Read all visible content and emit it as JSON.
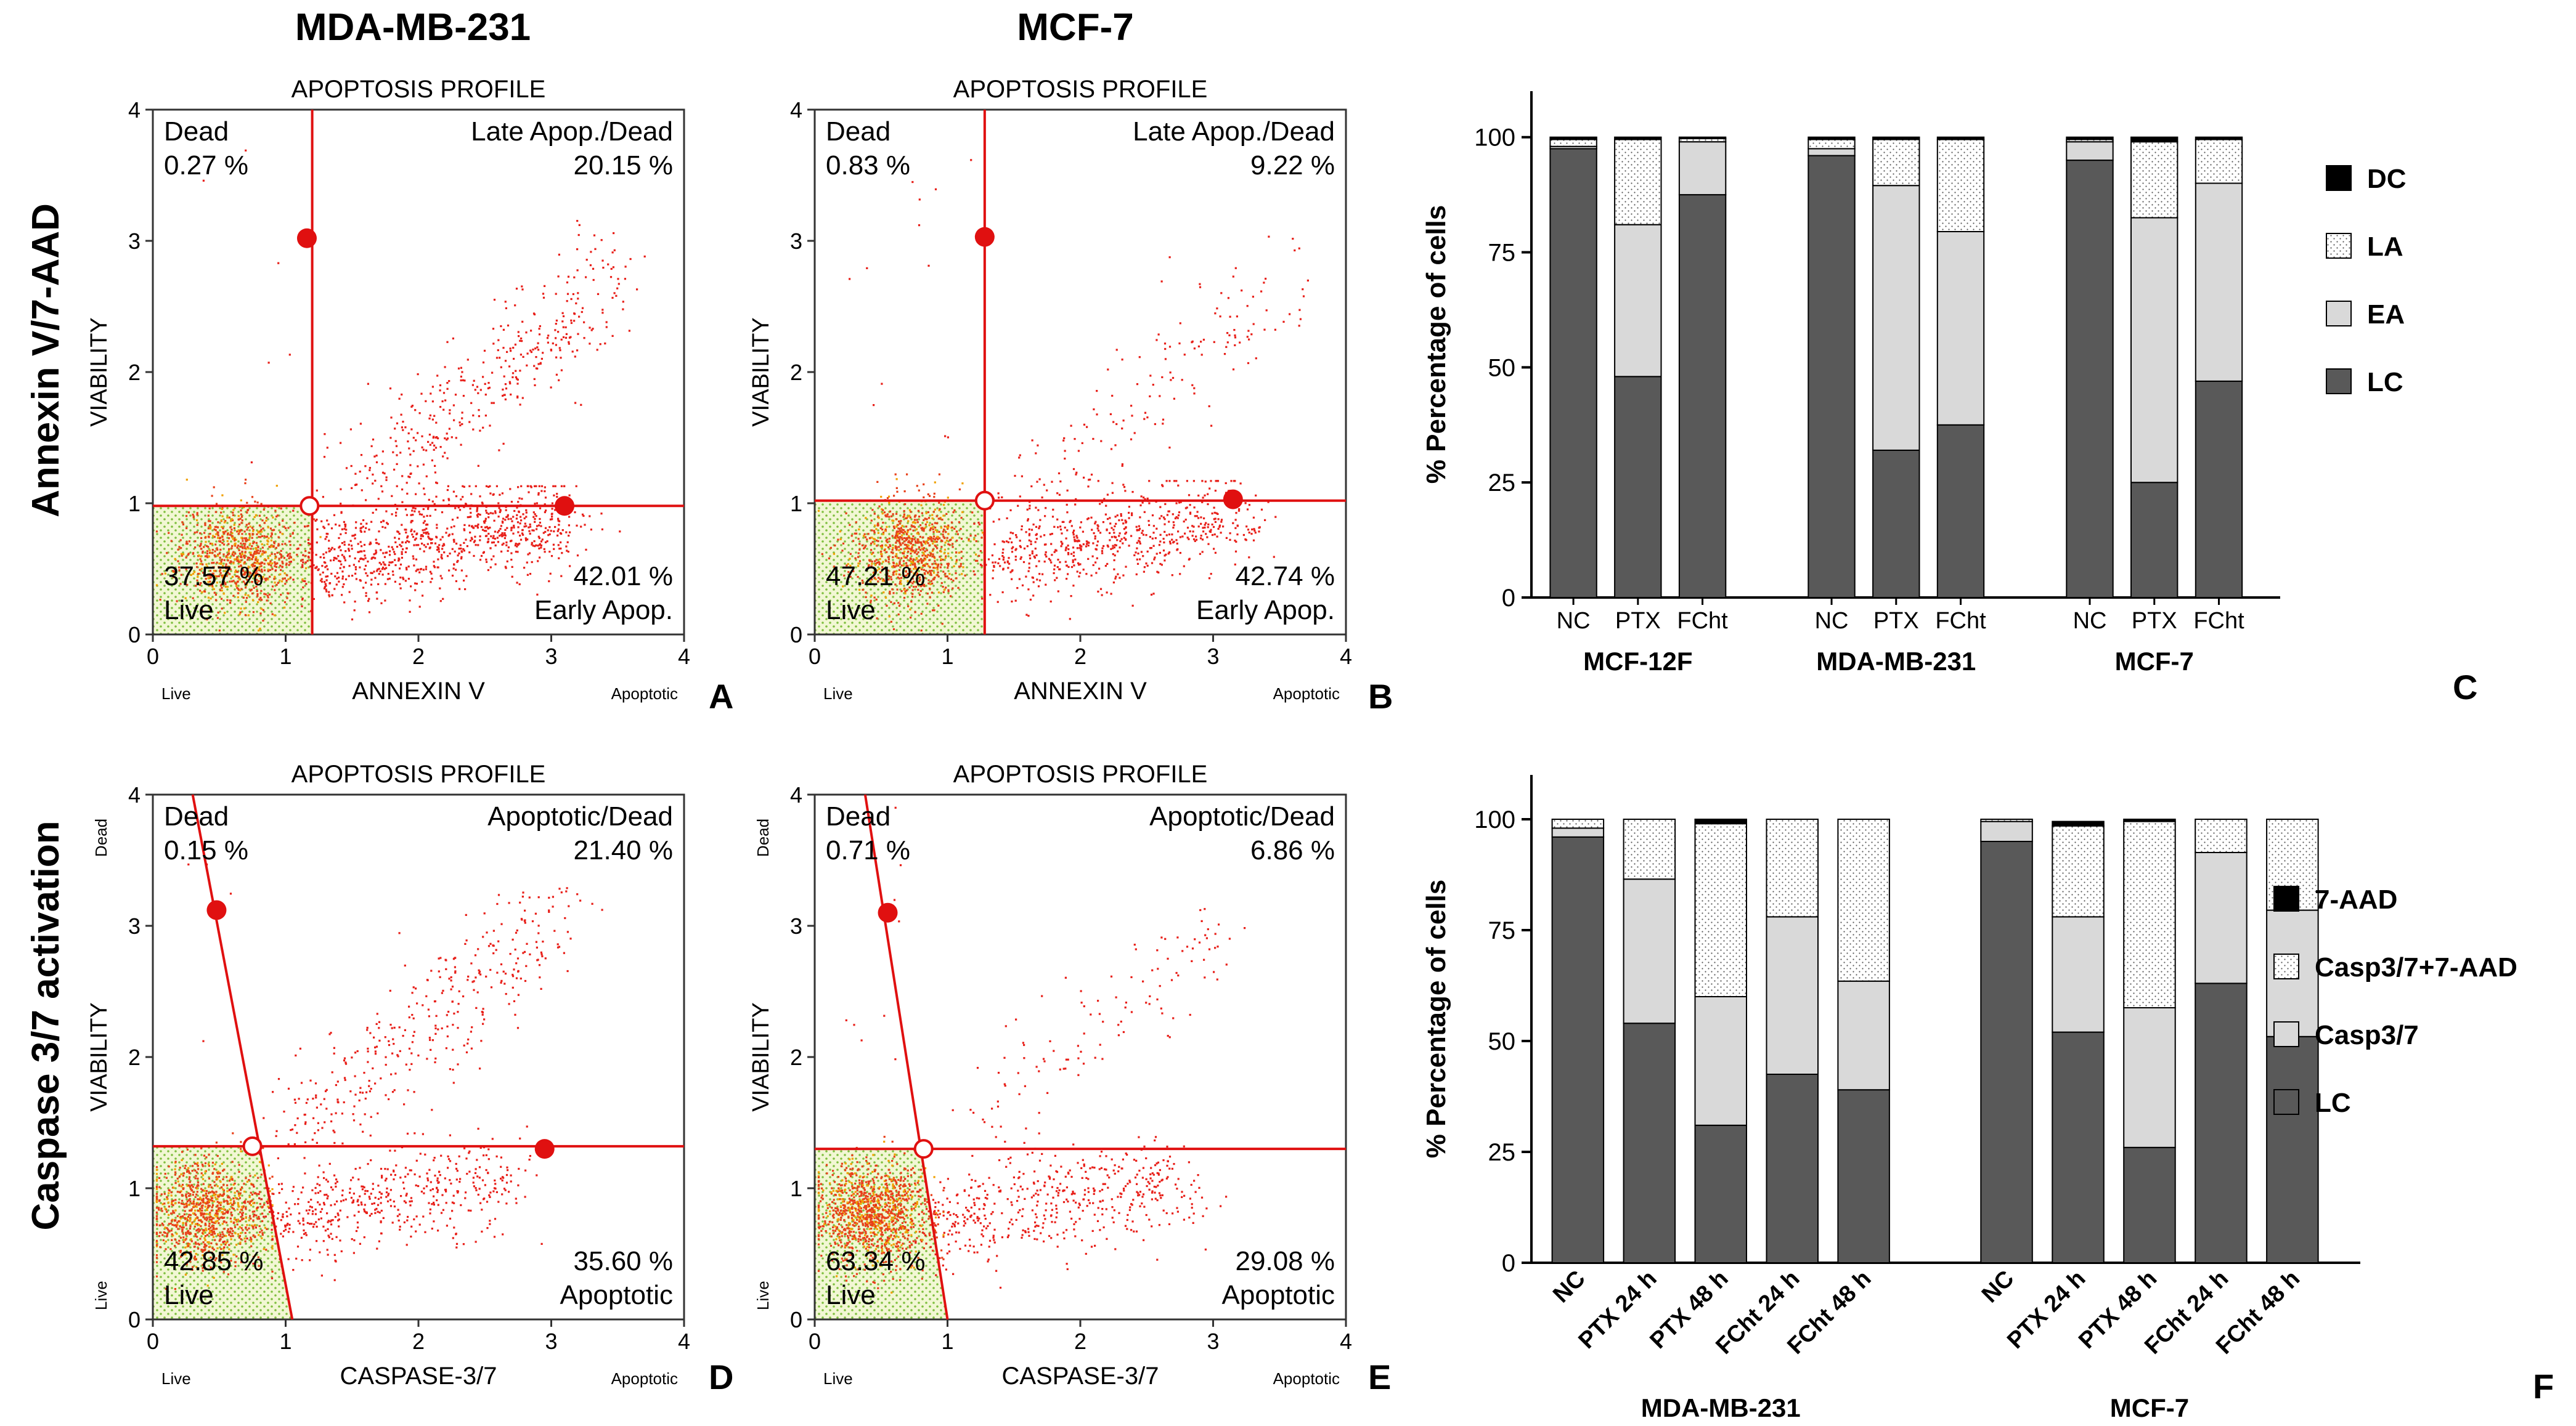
{
  "figure": {
    "col_titles": [
      "MDA-MB-231",
      "MCF-7"
    ],
    "row_titles": [
      "Annexin V/7-AAD",
      "Caspase 3/7 activation"
    ]
  },
  "chart_data": [
    {
      "type": "scatter",
      "panel": "A",
      "title": "APOPTOSIS PROFILE",
      "xlabel": "ANNEXIN V",
      "ylabel": "VIABILITY",
      "x_left_label": "Live",
      "x_right_label": "Apoptotic",
      "y_top_label": "",
      "y_bottom_label": "",
      "xlim": [
        0,
        4
      ],
      "ylim": [
        0,
        4
      ],
      "xticks": [
        "0",
        "1",
        "2",
        "3",
        "4"
      ],
      "yticks": [
        "0",
        "1",
        "2",
        "3",
        "4"
      ],
      "quadrants": {
        "tl_name": "Dead",
        "tl_pct": "0.27 %",
        "tr_name": "Late Apop./Dead",
        "tr_pct": "20.15 %",
        "bl_name": "Live",
        "bl_pct": "37.57 %",
        "br_name": "Early Apop.",
        "br_pct": "42.01 %"
      },
      "gate": {
        "center": [
          1.18,
          0.98
        ],
        "top_handle": [
          1.16,
          3.02
        ],
        "right_handle": [
          3.1,
          0.98
        ],
        "line_top": [
          1.2,
          4
        ],
        "line_bottom": [
          1.2,
          0
        ]
      },
      "points": {
        "live": 800,
        "early": 900,
        "late": 420,
        "dead": 6
      }
    },
    {
      "type": "scatter",
      "panel": "B",
      "title": "APOPTOSIS PROFILE",
      "xlabel": "ANNEXIN V",
      "ylabel": "VIABILITY",
      "x_left_label": "Live",
      "x_right_label": "Apoptotic",
      "y_top_label": "",
      "y_bottom_label": "",
      "xlim": [
        0,
        4
      ],
      "ylim": [
        0,
        4
      ],
      "xticks": [
        "0",
        "1",
        "2",
        "3",
        "4"
      ],
      "yticks": [
        "0",
        "1",
        "2",
        "3",
        "4"
      ],
      "quadrants": {
        "tl_name": "Dead",
        "tl_pct": "0.83 %",
        "tr_name": "Late Apop./Dead",
        "tr_pct": "9.22 %",
        "bl_name": "Live",
        "bl_pct": "47.21 %",
        "br_name": "Early Apop.",
        "br_pct": "42.74 %"
      },
      "gate": {
        "center": [
          1.28,
          1.02
        ],
        "top_handle": [
          1.28,
          3.03
        ],
        "right_handle": [
          3.15,
          1.03
        ],
        "line_top": [
          1.28,
          4
        ],
        "line_bottom": [
          1.28,
          0
        ]
      },
      "points": {
        "live": 800,
        "early": 650,
        "late": 160,
        "dead": 12
      }
    },
    {
      "type": "scatter",
      "panel": "D",
      "title": "APOPTOSIS PROFILE",
      "xlabel": "CASPASE-3/7",
      "ylabel": "VIABILITY",
      "x_left_label": "Live",
      "x_right_label": "Apoptotic",
      "y_top_label": "Dead",
      "y_bottom_label": "Live",
      "xlim": [
        0,
        4
      ],
      "ylim": [
        0,
        4
      ],
      "xticks": [
        "0",
        "1",
        "2",
        "3",
        "4"
      ],
      "yticks": [
        "0",
        "1",
        "2",
        "3",
        "4"
      ],
      "quadrants": {
        "tl_name": "Dead",
        "tl_pct": "0.15 %",
        "tr_name": "Apoptotic/Dead",
        "tr_pct": "21.40 %",
        "bl_name": "Live",
        "bl_pct": "42.85 %",
        "br_name": "Apoptotic",
        "br_pct": "35.60 %"
      },
      "gate": {
        "center": [
          0.75,
          1.32
        ],
        "top_handle": [
          0.48,
          3.12
        ],
        "right_handle": [
          2.95,
          1.3
        ],
        "line_top": [
          0.3,
          4
        ],
        "line_bottom": [
          1.05,
          0
        ]
      },
      "points": {
        "live": 900,
        "early": 500,
        "late": 380,
        "dead": 4
      }
    },
    {
      "type": "scatter",
      "panel": "E",
      "title": "APOPTOSIS PROFILE",
      "xlabel": "CASPASE-3/7",
      "ylabel": "VIABILITY",
      "x_left_label": "Live",
      "x_right_label": "Apoptotic",
      "y_top_label": "Dead",
      "y_bottom_label": "Live",
      "xlim": [
        0,
        4
      ],
      "ylim": [
        0,
        4
      ],
      "xticks": [
        "0",
        "1",
        "2",
        "3",
        "4"
      ],
      "yticks": [
        "0",
        "1",
        "2",
        "3",
        "4"
      ],
      "quadrants": {
        "tl_name": "Dead",
        "tl_pct": "0.71 %",
        "tr_name": "Apoptotic/Dead",
        "tr_pct": "6.86 %",
        "bl_name": "Live",
        "bl_pct": "63.34 %",
        "br_name": "Apoptotic",
        "br_pct": "29.08 %"
      },
      "gate": {
        "center": [
          0.82,
          1.3
        ],
        "top_handle": [
          0.55,
          3.1
        ],
        "right_handle": null,
        "line_top": [
          0.38,
          4
        ],
        "line_bottom": [
          1.0,
          0
        ]
      },
      "points": {
        "live": 1100,
        "early": 500,
        "late": 120,
        "dead": 10
      }
    },
    {
      "type": "bar",
      "stacked": true,
      "panel": "C",
      "ylabel": "% Percentage of cells",
      "ylim": [
        0,
        110
      ],
      "yticks": [
        "0",
        "25",
        "50",
        "75",
        "100"
      ],
      "categories": [
        "NC",
        "PTX",
        "FCht",
        "NC",
        "PTX",
        "FCht",
        "NC",
        "PTX",
        "FCht"
      ],
      "groups": [
        {
          "name": "MCF-12F",
          "indices": [
            0,
            1,
            2
          ]
        },
        {
          "name": "MDA-MB-231",
          "indices": [
            3,
            4,
            5
          ]
        },
        {
          "name": "MCF-7",
          "indices": [
            6,
            7,
            8
          ]
        }
      ],
      "series": [
        {
          "name": "LC",
          "key": "lc",
          "values": [
            97.5,
            48,
            87.5,
            96,
            32,
            37.5,
            95,
            25,
            47
          ]
        },
        {
          "name": "EA",
          "key": "ea",
          "values": [
            0.5,
            33,
            11.5,
            1.5,
            57.5,
            42,
            4,
            57.5,
            43
          ]
        },
        {
          "name": "LA",
          "key": "la",
          "values": [
            1.5,
            18.5,
            0.7,
            2,
            10,
            20,
            0.5,
            16.5,
            9.5
          ]
        },
        {
          "name": "DC",
          "key": "dc",
          "values": [
            0.5,
            0.5,
            0.3,
            0.5,
            0.5,
            0.5,
            0.5,
            1,
            0.5
          ]
        }
      ]
    },
    {
      "type": "bar",
      "stacked": true,
      "panel": "F",
      "ylabel": "% Percentage of cells",
      "ylim": [
        0,
        110
      ],
      "yticks": [
        "0",
        "25",
        "50",
        "75",
        "100"
      ],
      "categories": [
        "NC",
        "PTX 24 h",
        "PTX 48 h",
        "FCht 24 h",
        "FCht 48 h",
        "NC",
        "PTX 24 h",
        "PTX 48 h",
        "FCht 24 h",
        "FCht 48 h"
      ],
      "groups": [
        {
          "name": "MDA-MB-231",
          "indices": [
            0,
            1,
            2,
            3,
            4
          ]
        },
        {
          "name": "MCF-7",
          "indices": [
            5,
            6,
            7,
            8,
            9
          ]
        }
      ],
      "series": [
        {
          "name": "LC",
          "key": "lc",
          "values": [
            96,
            54,
            31,
            42.5,
            39,
            95,
            52,
            26,
            63,
            51
          ]
        },
        {
          "name": "Casp3/7",
          "key": "ea",
          "values": [
            2,
            32.5,
            29,
            35.5,
            24.5,
            4.5,
            26,
            31.5,
            29.5,
            28.5
          ]
        },
        {
          "name": "Casp3/7+7-AAD",
          "key": "la",
          "values": [
            2,
            13.5,
            39,
            22,
            36.5,
            0.5,
            20.5,
            42,
            7.5,
            20.5
          ]
        },
        {
          "name": "7-AAD",
          "key": "dc",
          "values": [
            0,
            0,
            1,
            0,
            0,
            0,
            1,
            0.5,
            0,
            0
          ]
        }
      ]
    }
  ],
  "panel_letters": {
    "A": "A",
    "B": "B",
    "C": "C",
    "D": "D",
    "E": "E",
    "F": "F"
  }
}
